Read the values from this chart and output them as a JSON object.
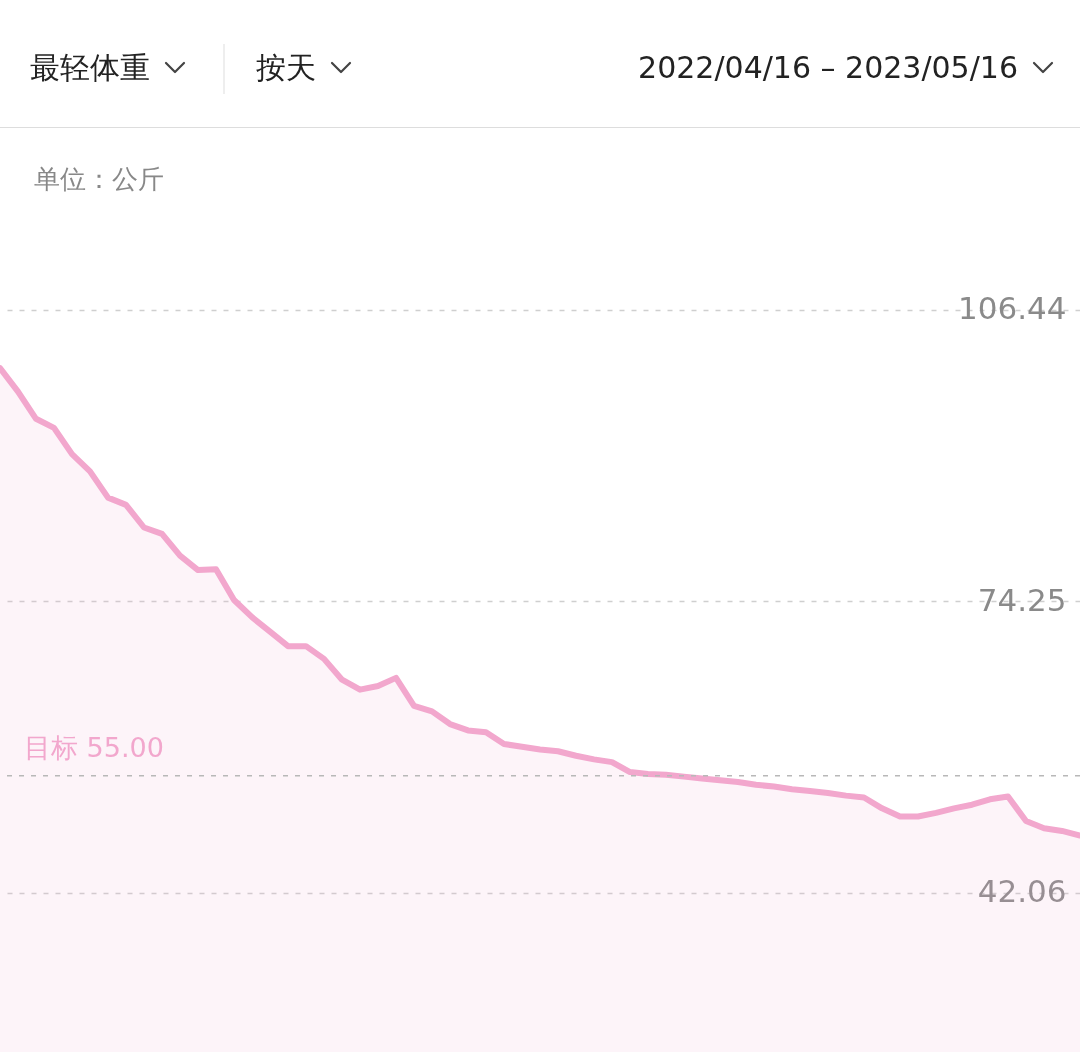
{
  "chart_data": {
    "type": "area",
    "annotations": [
      "最轻体重",
      "按天",
      "2022/04/16 – 2023/05/16"
    ],
    "ylabel": "单位：公斤",
    "categories": [
      null,
      null,
      null,
      null,
      null,
      null,
      null,
      null,
      null,
      null,
      null,
      null,
      null,
      null,
      null,
      null,
      null,
      null,
      null,
      null,
      null,
      null,
      null,
      null,
      null,
      null,
      null,
      null,
      null,
      null,
      null,
      null,
      null,
      null,
      null,
      null,
      null,
      null,
      null,
      null,
      null,
      null,
      null,
      null,
      null,
      null,
      null,
      null,
      null,
      null,
      null,
      null,
      null,
      null,
      null,
      null,
      null,
      null,
      null,
      null,
      null
    ],
    "series": [
      {
        "color": "#f2a7cd",
        "values": [
          100.0,
          97.4,
          94.4,
          93.4,
          90.5,
          88.6,
          85.7,
          84.9,
          82.4,
          81.7,
          79.3,
          77.7,
          77.8,
          74.4,
          72.5,
          70.9,
          69.3,
          69.3,
          67.9,
          65.6,
          64.5,
          64.9,
          65.8,
          62.7,
          62.1,
          60.7,
          60.0,
          59.8,
          58.5,
          58.2,
          57.9,
          57.7,
          57.2,
          56.8,
          56.5,
          55.4,
          55.2,
          55.1,
          54.9,
          54.7,
          54.5,
          54.3,
          54.0,
          53.8,
          53.5,
          53.3,
          53.1,
          52.8,
          52.6,
          51.4,
          50.5,
          50.5,
          50.9,
          51.4,
          51.8,
          52.4,
          52.7,
          50.0,
          49.2,
          48.9,
          48.4
        ]
      }
    ],
    "ylim": [
      24.5,
      126.5
    ],
    "yticks": [
      42.06,
      74.25,
      106.44
    ],
    "grid": "y",
    "line_style": "solid",
    "ref_lines": [
      {
        "axis": "y",
        "value": 55,
        "label": "目标 55.00",
        "color": "#b8b8b8",
        "line_style": "dashed"
      }
    ]
  }
}
